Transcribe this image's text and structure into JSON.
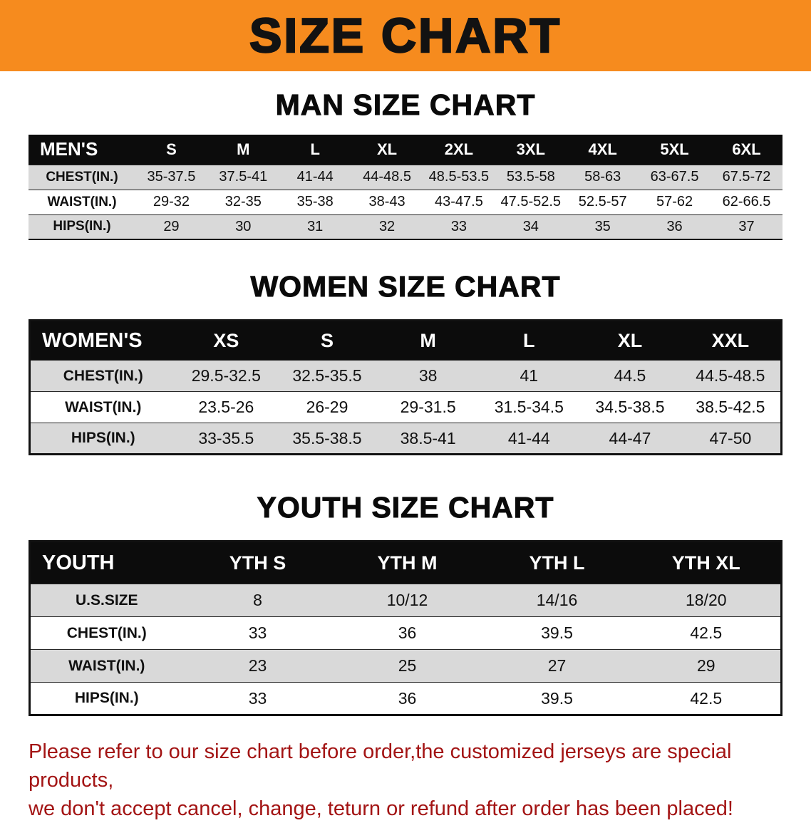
{
  "banner": {
    "title": "SIZE CHART",
    "bg_color": "#f68b1e",
    "text_color": "#121212"
  },
  "sections": [
    {
      "heading": "MAN SIZE CHART",
      "table": {
        "header": [
          "MEN'S",
          "S",
          "M",
          "L",
          "XL",
          "2XL",
          "3XL",
          "4XL",
          "5XL",
          "6XL"
        ],
        "rows": [
          [
            "CHEST(IN.)",
            "35-37.5",
            "37.5-41",
            "41-44",
            "44-48.5",
            "48.5-53.5",
            "53.5-58",
            "58-63",
            "63-67.5",
            "67.5-72"
          ],
          [
            "WAIST(IN.)",
            "29-32",
            "32-35",
            "35-38",
            "38-43",
            "43-47.5",
            "47.5-52.5",
            "52.5-57",
            "57-62",
            "62-66.5"
          ],
          [
            "HIPS(IN.)",
            "29",
            "30",
            "31",
            "32",
            "33",
            "34",
            "35",
            "36",
            "37"
          ]
        ]
      }
    },
    {
      "heading": "WOMEN SIZE CHART",
      "table": {
        "header": [
          "WOMEN'S",
          "XS",
          "S",
          "M",
          "L",
          "XL",
          "XXL"
        ],
        "rows": [
          [
            "CHEST(IN.)",
            "29.5-32.5",
            "32.5-35.5",
            "38",
            "41",
            "44.5",
            "44.5-48.5"
          ],
          [
            "WAIST(IN.)",
            "23.5-26",
            "26-29",
            "29-31.5",
            "31.5-34.5",
            "34.5-38.5",
            "38.5-42.5"
          ],
          [
            "HIPS(IN.)",
            "33-35.5",
            "35.5-38.5",
            "38.5-41",
            "41-44",
            "44-47",
            "47-50"
          ]
        ]
      }
    },
    {
      "heading": "YOUTH SIZE CHART",
      "table": {
        "header": [
          "YOUTH",
          "YTH S",
          "YTH M",
          "YTH L",
          "YTH XL"
        ],
        "rows": [
          [
            "U.S.SIZE",
            "8",
            "10/12",
            "14/16",
            "18/20"
          ],
          [
            "CHEST(IN.)",
            "33",
            "36",
            "39.5",
            "42.5"
          ],
          [
            "WAIST(IN.)",
            "23",
            "25",
            "27",
            "29"
          ],
          [
            "HIPS(IN.)",
            "33",
            "36",
            "39.5",
            "42.5"
          ]
        ]
      }
    }
  ],
  "disclaimer": {
    "text_color": "#a31414",
    "lines": [
      "Please refer to our size chart before order,the customized jerseys are special products,",
      "we don't accept cancel, change, teturn or refund after order has been placed!"
    ]
  }
}
